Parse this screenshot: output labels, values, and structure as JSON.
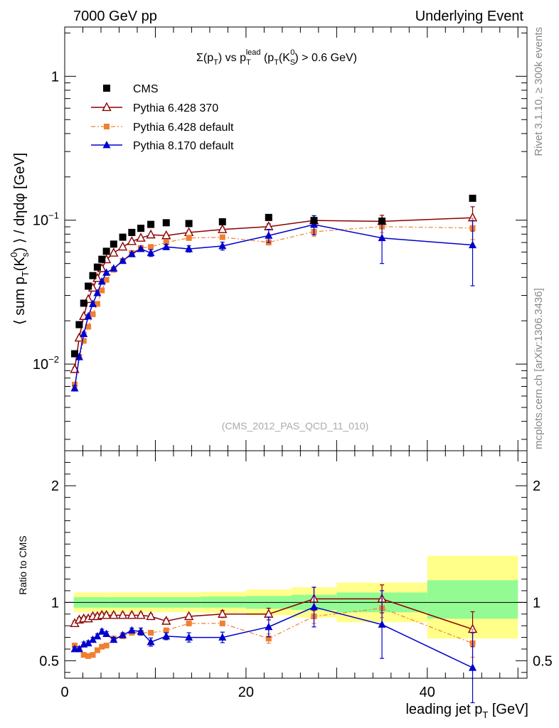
{
  "header": {
    "left": "7000 GeV pp",
    "right": "Underlying Event",
    "side_top": "Rivet 3.1.10, ≥ 300k events",
    "side_bottom": "mcplots.cern.ch [arXiv:1306.3436]",
    "analysis": "(CMS_2012_PAS_QCD_11_010)"
  },
  "chart_data": [
    {
      "type": "scatter",
      "panel": "main",
      "title": "Σ(p_T) vs p_T^lead (p_T(K_S^0) > 0.6 GeV)",
      "ylabel": "⟨ sum p_T(K_s^0) ⟩ / dηdφ [GeV]",
      "yscale": "log",
      "ylim": [
        0.0025,
        2.2
      ],
      "xlim": [
        0,
        51
      ],
      "yticks": [
        0.01,
        0.1,
        1
      ],
      "legend_position": "top-left",
      "x": [
        1.1,
        1.6,
        2.1,
        2.6,
        3.1,
        3.6,
        4.1,
        4.6,
        5.4,
        6.4,
        7.4,
        8.4,
        9.5,
        11.2,
        13.7,
        17.4,
        22.5,
        27.5,
        35,
        45
      ],
      "series": [
        {
          "name": "CMS",
          "color": "#000000",
          "marker": "square",
          "values": [
            0.0118,
            0.0188,
            0.0265,
            0.0348,
            0.0412,
            0.0472,
            0.0535,
            0.0608,
            0.0682,
            0.0762,
            0.0822,
            0.0878,
            0.0935,
            0.096,
            0.0948,
            0.0975,
            0.1045,
            0.0995,
            0.0985,
            0.142
          ],
          "errors": [
            0.0004,
            0.0005,
            0.0006,
            0.0007,
            0.0008,
            0.0009,
            0.001,
            0.0011,
            0.0012,
            0.0013,
            0.0014,
            0.0015,
            0.0016,
            0.0016,
            0.0016,
            0.0018,
            0.002,
            0.0025,
            0.003,
            0.004
          ]
        },
        {
          "name": "Pythia 6.428 370",
          "color": "#8b0000",
          "marker": "open-triangle",
          "values": [
            0.0092,
            0.0152,
            0.0215,
            0.0282,
            0.0338,
            0.0395,
            0.0462,
            0.0532,
            0.0592,
            0.0652,
            0.0712,
            0.0752,
            0.0792,
            0.0782,
            0.0822,
            0.0862,
            0.0902,
            0.0995,
            0.0982,
            0.104
          ],
          "errors": [
            0.0003,
            0.0004,
            0.0005,
            0.0005,
            0.0006,
            0.0007,
            0.0008,
            0.0009,
            0.001,
            0.0011,
            0.0012,
            0.0014,
            0.0016,
            0.0018,
            0.002,
            0.003,
            0.004,
            0.008,
            0.01,
            0.02
          ]
        },
        {
          "name": "Pythia 6.428 default",
          "color": "#f08030",
          "marker": "square",
          "values": [
            0.0072,
            0.0112,
            0.0145,
            0.0182,
            0.0222,
            0.0262,
            0.0325,
            0.0385,
            0.0452,
            0.0522,
            0.0592,
            0.0642,
            0.0652,
            0.0702,
            0.0752,
            0.0762,
            0.0702,
            0.0832,
            0.0902,
            0.0882
          ],
          "errors": [
            0.0002,
            0.0003,
            0.0004,
            0.0004,
            0.0005,
            0.0006,
            0.0007,
            0.0008,
            0.0009,
            0.001,
            0.0012,
            0.0013,
            0.0014,
            0.0016,
            0.0018,
            0.002,
            0.003,
            0.006,
            0.008,
            0.015
          ]
        },
        {
          "name": "Pythia 8.170 default",
          "color": "#0000cd",
          "marker": "triangle",
          "values": [
            0.0068,
            0.0112,
            0.0162,
            0.0215,
            0.0262,
            0.0312,
            0.0375,
            0.0432,
            0.0462,
            0.0522,
            0.0582,
            0.0632,
            0.0592,
            0.0652,
            0.0632,
            0.0662,
            0.0782,
            0.0932,
            0.0752,
            0.0672
          ],
          "errors": [
            0.0003,
            0.0004,
            0.0005,
            0.0006,
            0.0007,
            0.0008,
            0.0009,
            0.001,
            0.0011,
            0.0012,
            0.0014,
            0.0015,
            0.0032,
            0.0028,
            0.0032,
            0.0042,
            0.0082,
            0.0142,
            0.0252,
            0.0322
          ]
        }
      ]
    },
    {
      "type": "scatter",
      "panel": "ratio",
      "ylabel": "Ratio to CMS",
      "xlabel": "leading jet p_T [GeV]",
      "ylim": [
        0.35,
        2.3
      ],
      "xlim": [
        0,
        51
      ],
      "xticks": [
        0,
        20,
        40
      ],
      "yticks": [
        0.5,
        1,
        2
      ],
      "reference_line": 1,
      "bands": {
        "edges": [
          1,
          5,
          10,
          15,
          20,
          25,
          30,
          40,
          50
        ],
        "green_low": [
          0.955,
          0.955,
          0.955,
          0.955,
          0.945,
          0.935,
          0.915,
          0.86
        ],
        "green_high": [
          1.045,
          1.045,
          1.045,
          1.05,
          1.055,
          1.065,
          1.085,
          1.19
        ],
        "yellow_low": [
          0.915,
          0.915,
          0.915,
          0.91,
          0.89,
          0.87,
          0.83,
          0.69
        ],
        "yellow_high": [
          1.085,
          1.085,
          1.085,
          1.09,
          1.11,
          1.13,
          1.17,
          1.4
        ]
      },
      "x": [
        1.1,
        1.6,
        2.1,
        2.6,
        3.1,
        3.6,
        4.1,
        4.6,
        5.4,
        6.4,
        7.4,
        8.4,
        9.5,
        11.2,
        13.7,
        17.4,
        22.5,
        27.5,
        35,
        45
      ],
      "series": [
        {
          "name": "Pythia 6.428 370",
          "color": "#8b0000",
          "marker": "open-triangle",
          "values": [
            0.82,
            0.85,
            0.86,
            0.86,
            0.88,
            0.88,
            0.89,
            0.89,
            0.89,
            0.89,
            0.89,
            0.89,
            0.88,
            0.84,
            0.88,
            0.9,
            0.9,
            1.03,
            1.03,
            0.77
          ],
          "errors": [
            0.02,
            0.02,
            0.02,
            0.02,
            0.02,
            0.02,
            0.02,
            0.02,
            0.02,
            0.02,
            0.02,
            0.02,
            0.02,
            0.02,
            0.02,
            0.03,
            0.05,
            0.1,
            0.12,
            0.15
          ]
        },
        {
          "name": "Pythia 6.428 default",
          "color": "#f08030",
          "marker": "square",
          "values": [
            0.63,
            0.6,
            0.55,
            0.54,
            0.55,
            0.59,
            0.62,
            0.63,
            0.69,
            0.71,
            0.74,
            0.74,
            0.74,
            0.76,
            0.82,
            0.82,
            0.69,
            0.88,
            0.95,
            0.65
          ],
          "errors": [
            0.01,
            0.01,
            0.01,
            0.01,
            0.01,
            0.01,
            0.01,
            0.01,
            0.01,
            0.01,
            0.01,
            0.02,
            0.02,
            0.02,
            0.02,
            0.02,
            0.04,
            0.06,
            0.08,
            0.12
          ]
        },
        {
          "name": "Pythia 8.170 default",
          "color": "#0000cd",
          "marker": "triangle",
          "values": [
            0.6,
            0.6,
            0.64,
            0.65,
            0.68,
            0.71,
            0.75,
            0.73,
            0.68,
            0.72,
            0.76,
            0.75,
            0.66,
            0.71,
            0.7,
            0.7,
            0.79,
            0.96,
            0.81,
            0.44
          ],
          "errors": [
            0.02,
            0.02,
            0.02,
            0.02,
            0.02,
            0.02,
            0.02,
            0.02,
            0.02,
            0.02,
            0.02,
            0.03,
            0.035,
            0.03,
            0.04,
            0.045,
            0.085,
            0.17,
            0.29,
            0.3
          ]
        }
      ]
    }
  ]
}
